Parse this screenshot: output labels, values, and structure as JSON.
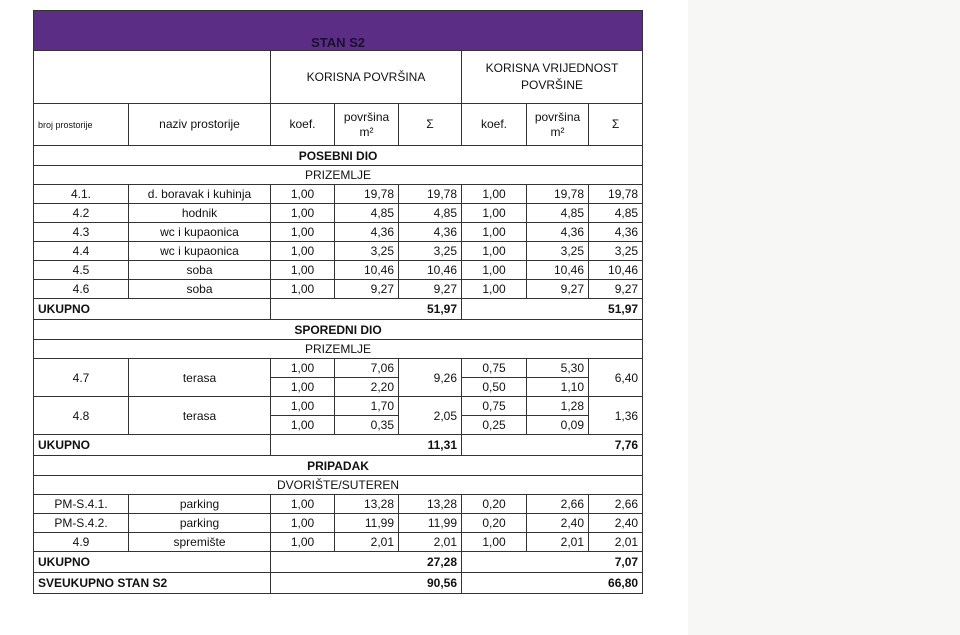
{
  "title": "STAN S2",
  "group_headers": [
    "KORISNA POVRŠINA",
    "KORISNA VRIJEDNOST POVRŠINE"
  ],
  "column_headers": [
    "broj prostorije",
    "naziv prostorije",
    "koef.",
    "površina m²",
    "Σ",
    "koef.",
    "površina m²",
    "Σ"
  ],
  "sections": [
    {
      "title": "POSEBNI DIO",
      "subtitle": "PRIZEMLJE",
      "rows": [
        {
          "no": "4.1.",
          "name": "d. boravak i kuhinja",
          "a": {
            "parts": [
              [
                "1,00",
                "19,78"
              ]
            ],
            "sum": "19,78"
          },
          "b": {
            "parts": [
              [
                "1,00",
                "19,78"
              ]
            ],
            "sum": "19,78"
          }
        },
        {
          "no": "4.2",
          "name": "hodnik",
          "a": {
            "parts": [
              [
                "1,00",
                "4,85"
              ]
            ],
            "sum": "4,85"
          },
          "b": {
            "parts": [
              [
                "1,00",
                "4,85"
              ]
            ],
            "sum": "4,85"
          }
        },
        {
          "no": "4.3",
          "name": "wc i kupaonica",
          "a": {
            "parts": [
              [
                "1,00",
                "4,36"
              ]
            ],
            "sum": "4,36"
          },
          "b": {
            "parts": [
              [
                "1,00",
                "4,36"
              ]
            ],
            "sum": "4,36"
          }
        },
        {
          "no": "4.4",
          "name": "wc i kupaonica",
          "a": {
            "parts": [
              [
                "1,00",
                "3,25"
              ]
            ],
            "sum": "3,25"
          },
          "b": {
            "parts": [
              [
                "1,00",
                "3,25"
              ]
            ],
            "sum": "3,25"
          }
        },
        {
          "no": "4.5",
          "name": "soba",
          "a": {
            "parts": [
              [
                "1,00",
                "10,46"
              ]
            ],
            "sum": "10,46"
          },
          "b": {
            "parts": [
              [
                "1,00",
                "10,46"
              ]
            ],
            "sum": "10,46"
          }
        },
        {
          "no": "4.6",
          "name": "soba",
          "a": {
            "parts": [
              [
                "1,00",
                "9,27"
              ]
            ],
            "sum": "9,27"
          },
          "b": {
            "parts": [
              [
                "1,00",
                "9,27"
              ]
            ],
            "sum": "9,27"
          }
        }
      ],
      "total": {
        "label": "UKUPNO",
        "values": [
          "51,97",
          "51,97"
        ]
      }
    },
    {
      "title": "SPOREDNI DIO",
      "subtitle": "PRIZEMLJE",
      "rows": [
        {
          "no": "4.7",
          "name": "terasa",
          "a": {
            "parts": [
              [
                "1,00",
                "7,06"
              ],
              [
                "1,00",
                "2,20"
              ]
            ],
            "sum": "9,26"
          },
          "b": {
            "parts": [
              [
                "0,75",
                "5,30"
              ],
              [
                "0,50",
                "1,10"
              ]
            ],
            "sum": "6,40"
          }
        },
        {
          "no": "4.8",
          "name": "terasa",
          "a": {
            "parts": [
              [
                "1,00",
                "1,70"
              ],
              [
                "1,00",
                "0,35"
              ]
            ],
            "sum": "2,05"
          },
          "b": {
            "parts": [
              [
                "0,75",
                "1,28"
              ],
              [
                "0,25",
                "0,09"
              ]
            ],
            "sum": "1,36"
          }
        }
      ],
      "total": {
        "label": "UKUPNO",
        "values": [
          "11,31",
          "7,76"
        ]
      }
    },
    {
      "title": "PRIPADAK",
      "subtitle": "DVORIŠTE/SUTEREN",
      "rows": [
        {
          "no": "PM-S.4.1.",
          "name": "parking",
          "a": {
            "parts": [
              [
                "1,00",
                "13,28"
              ]
            ],
            "sum": "13,28"
          },
          "b": {
            "parts": [
              [
                "0,20",
                "2,66"
              ]
            ],
            "sum": "2,66"
          }
        },
        {
          "no": "PM-S.4.2.",
          "name": "parking",
          "a": {
            "parts": [
              [
                "1,00",
                "11,99"
              ]
            ],
            "sum": "11,99"
          },
          "b": {
            "parts": [
              [
                "0,20",
                "2,40"
              ]
            ],
            "sum": "2,40"
          }
        },
        {
          "no": "4.9",
          "name": "spremište",
          "a": {
            "parts": [
              [
                "1,00",
                "2,01"
              ]
            ],
            "sum": "2,01"
          },
          "b": {
            "parts": [
              [
                "1,00",
                "2,01"
              ]
            ],
            "sum": "2,01"
          }
        }
      ],
      "total": {
        "label": "UKUPNO",
        "values": [
          "27,28",
          "7,07"
        ]
      }
    }
  ],
  "grand_total": {
    "label": "SVEUKUPNO STAN S2",
    "values": [
      "90,56",
      "66,80"
    ]
  }
}
